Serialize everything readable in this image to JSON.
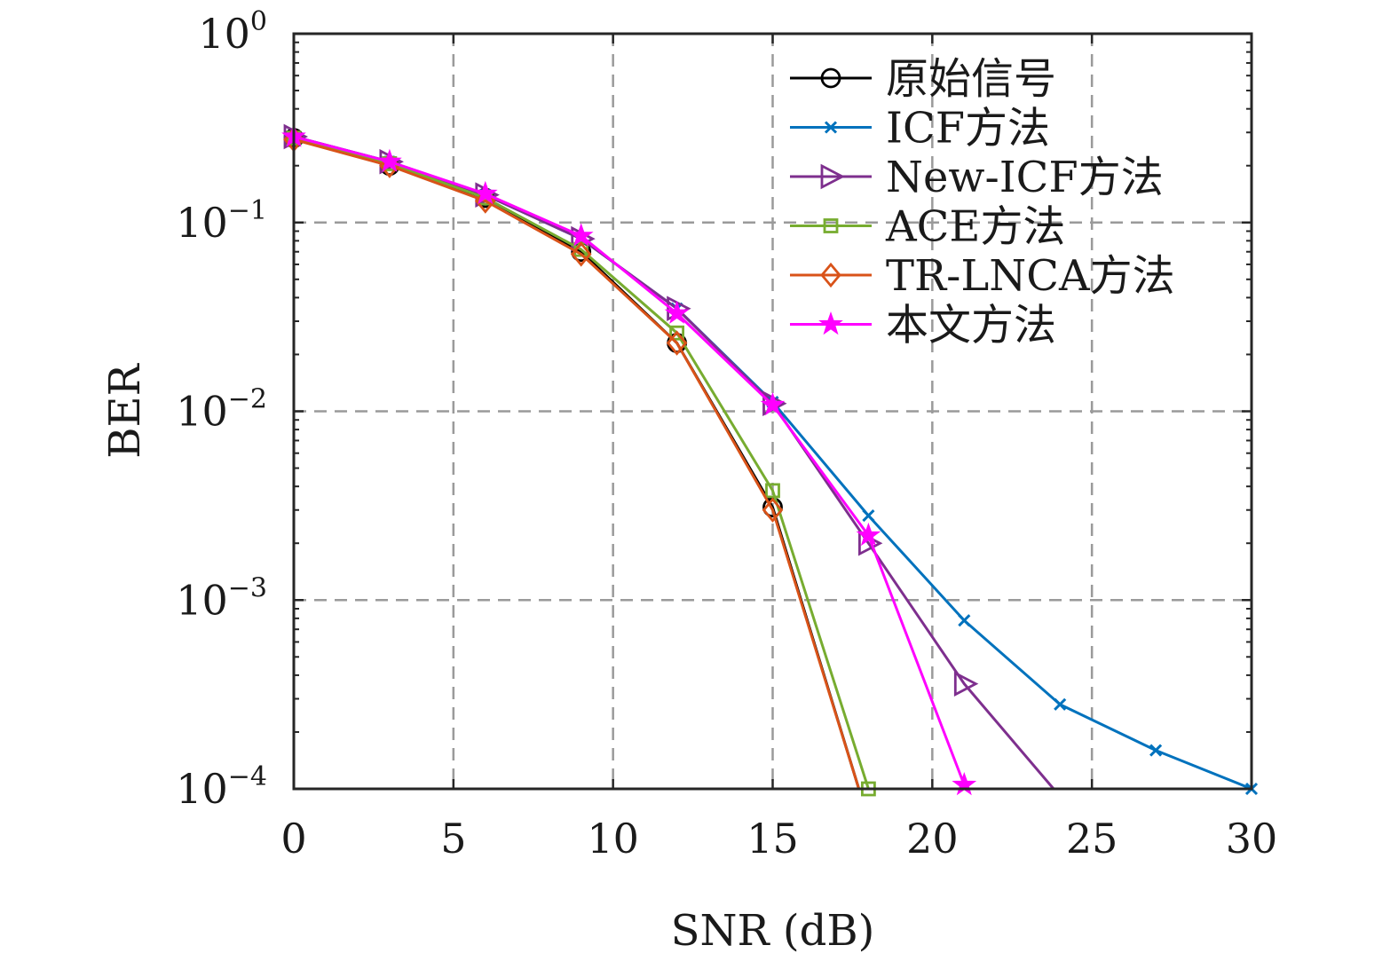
{
  "chart_data": {
    "type": "line",
    "title": "",
    "xlabel": "SNR (dB)",
    "ylabel": "BER",
    "x_scale": "linear",
    "y_scale": "log",
    "xlim": [
      0,
      30
    ],
    "ylim": [
      0.0001,
      1
    ],
    "x_ticks": [
      0,
      5,
      10,
      15,
      20,
      25,
      30
    ],
    "x_tick_labels": [
      "0",
      "5",
      "10",
      "15",
      "20",
      "25",
      "30"
    ],
    "y_ticks": [
      {
        "value": 1,
        "base": "10",
        "exp": "0"
      },
      {
        "value": 0.1,
        "base": "10",
        "exp": "−1"
      },
      {
        "value": 0.01,
        "base": "10",
        "exp": "−2"
      },
      {
        "value": 0.001,
        "base": "10",
        "exp": "−3"
      },
      {
        "value": 0.0001,
        "base": "10",
        "exp": "−4"
      }
    ],
    "grid": true,
    "legend_position": "top-right",
    "series": [
      {
        "name": "原始信号",
        "color": "#000000",
        "marker": "circle",
        "x": [
          0,
          3,
          6,
          9,
          12,
          15,
          17.7
        ],
        "y": [
          0.28,
          0.2,
          0.135,
          0.07,
          0.023,
          0.0031,
          0.0001
        ]
      },
      {
        "name": "ICF方法",
        "color": "#0072BD",
        "marker": "x",
        "x": [
          0,
          3,
          6,
          9,
          12,
          15,
          18,
          21,
          24,
          27,
          30
        ],
        "y": [
          0.285,
          0.21,
          0.14,
          0.082,
          0.035,
          0.0112,
          0.0028,
          0.00078,
          0.00028,
          0.00016,
          0.0001
        ]
      },
      {
        "name": "New-ICF方法",
        "color": "#7E2F8E",
        "marker": "triangle-right",
        "x": [
          0,
          3,
          6,
          9,
          12,
          15,
          18,
          21,
          23.8
        ],
        "y": [
          0.285,
          0.21,
          0.14,
          0.082,
          0.035,
          0.011,
          0.002,
          0.00036,
          0.0001
        ]
      },
      {
        "name": "ACE方法",
        "color": "#77AC30",
        "marker": "square",
        "x": [
          0,
          3,
          6,
          9,
          12,
          15,
          18
        ],
        "y": [
          0.28,
          0.205,
          0.135,
          0.072,
          0.026,
          0.0038,
          0.0001
        ]
      },
      {
        "name": "TR-LNCA方法",
        "color": "#D95319",
        "marker": "diamond",
        "x": [
          0,
          3,
          6,
          9,
          12,
          15,
          17.7
        ],
        "y": [
          0.275,
          0.2,
          0.13,
          0.068,
          0.023,
          0.003,
          0.0001
        ]
      },
      {
        "name": "本文方法",
        "color": "#FF00FF",
        "marker": "star",
        "x": [
          0,
          3,
          6,
          9,
          12,
          15,
          18,
          21
        ],
        "y": [
          0.285,
          0.21,
          0.142,
          0.085,
          0.033,
          0.0108,
          0.0022,
          0.000105
        ]
      }
    ]
  }
}
